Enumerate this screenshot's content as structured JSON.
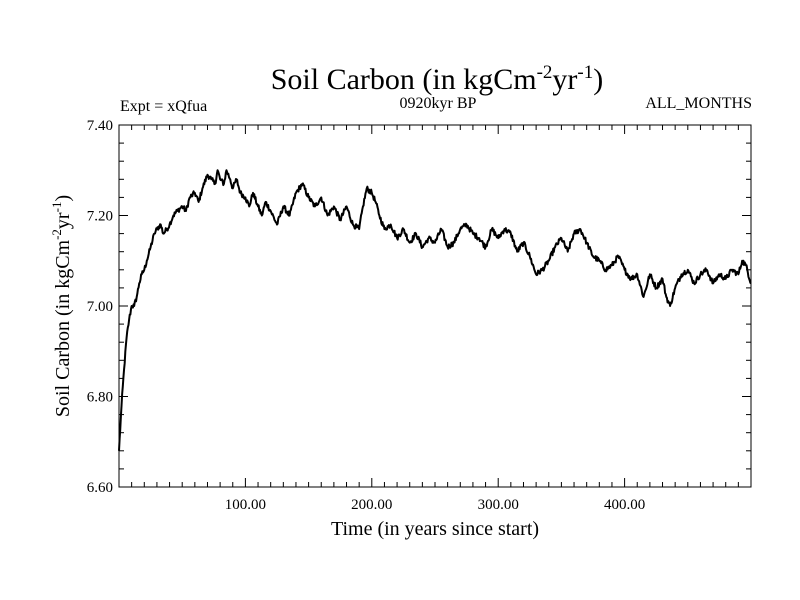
{
  "chart_data": {
    "type": "line",
    "title": {
      "main": "Soil Carbon (in kgCm",
      "sup1": "-2",
      "mid": "yr",
      "sup2": "-1",
      "end": ")"
    },
    "info_left": "Expt = xQfua",
    "info_center": "0920kyr BP",
    "info_right": "ALL_MONTHS",
    "xlabel": "Time (in years since start)",
    "ylabel": {
      "main": "Soil Carbon (in kgCm",
      "sup1": "-2",
      "mid": "yr",
      "sup2": "-1",
      "end": ")"
    },
    "xlim": [
      0,
      500
    ],
    "ylim": [
      6.6,
      7.4
    ],
    "x_ticks": [
      100,
      200,
      300,
      400
    ],
    "x_tick_labels": [
      "100.00",
      "200.00",
      "300.00",
      "400.00"
    ],
    "x_minor_step": 10,
    "y_ticks": [
      6.6,
      6.8,
      7.0,
      7.2,
      7.4
    ],
    "y_tick_labels": [
      "6.60",
      "6.80",
      "7.00",
      "7.20",
      "7.40"
    ],
    "y_minor_step": 0.04,
    "series": [
      {
        "name": "Soil Carbon",
        "color": "#000000",
        "x": [
          0,
          2,
          4,
          6,
          8,
          10,
          12,
          14,
          16,
          18,
          20,
          22,
          25,
          28,
          30,
          33,
          35,
          38,
          40,
          43,
          46,
          50,
          53,
          56,
          60,
          63,
          66,
          70,
          73,
          76,
          78,
          80,
          83,
          85,
          88,
          90,
          93,
          96,
          100,
          103,
          106,
          110,
          113,
          116,
          120,
          125,
          130,
          135,
          140,
          145,
          150,
          155,
          160,
          165,
          170,
          175,
          180,
          185,
          190,
          193,
          196,
          200,
          203,
          206,
          210,
          215,
          220,
          225,
          230,
          235,
          240,
          245,
          250,
          255,
          260,
          265,
          270,
          275,
          280,
          285,
          290,
          295,
          300,
          305,
          310,
          315,
          320,
          325,
          330,
          335,
          340,
          345,
          350,
          355,
          360,
          365,
          370,
          375,
          380,
          385,
          390,
          395,
          400,
          405,
          410,
          415,
          420,
          425,
          430,
          433,
          436,
          440,
          445,
          450,
          455,
          460,
          465,
          470,
          475,
          480,
          485,
          490,
          493,
          496,
          500
        ],
        "y": [
          6.68,
          6.78,
          6.86,
          6.93,
          6.97,
          7.0,
          7.0,
          7.02,
          7.05,
          7.07,
          7.08,
          7.1,
          7.13,
          7.16,
          7.17,
          7.18,
          7.16,
          7.17,
          7.18,
          7.2,
          7.21,
          7.22,
          7.21,
          7.24,
          7.25,
          7.23,
          7.26,
          7.29,
          7.28,
          7.27,
          7.3,
          7.28,
          7.27,
          7.3,
          7.28,
          7.26,
          7.28,
          7.25,
          7.24,
          7.22,
          7.25,
          7.22,
          7.2,
          7.23,
          7.21,
          7.18,
          7.22,
          7.2,
          7.25,
          7.27,
          7.24,
          7.22,
          7.24,
          7.2,
          7.22,
          7.19,
          7.22,
          7.18,
          7.17,
          7.22,
          7.26,
          7.25,
          7.23,
          7.2,
          7.17,
          7.18,
          7.15,
          7.17,
          7.14,
          7.16,
          7.13,
          7.15,
          7.14,
          7.17,
          7.13,
          7.14,
          7.17,
          7.18,
          7.16,
          7.15,
          7.13,
          7.17,
          7.15,
          7.17,
          7.16,
          7.12,
          7.14,
          7.11,
          7.07,
          7.08,
          7.1,
          7.13,
          7.15,
          7.12,
          7.16,
          7.17,
          7.14,
          7.11,
          7.1,
          7.08,
          7.09,
          7.11,
          7.08,
          7.06,
          7.07,
          7.02,
          7.07,
          7.04,
          7.06,
          7.02,
          7.0,
          7.04,
          7.07,
          7.08,
          7.05,
          7.07,
          7.08,
          7.05,
          7.07,
          7.06,
          7.08,
          7.07,
          7.1,
          7.09,
          7.05
        ]
      }
    ]
  }
}
